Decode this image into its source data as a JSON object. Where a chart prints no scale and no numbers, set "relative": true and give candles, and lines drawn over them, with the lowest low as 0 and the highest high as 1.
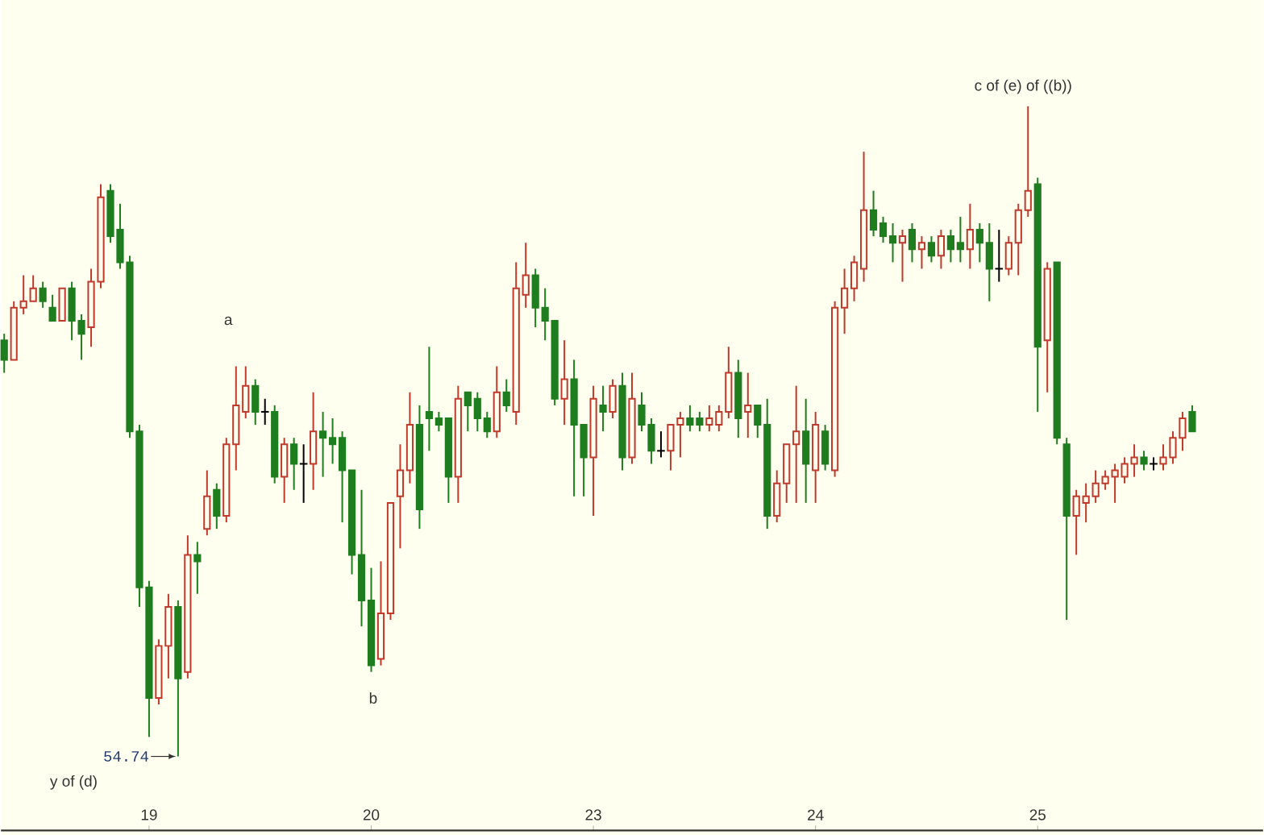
{
  "chart_data": {
    "type": "candlestick",
    "relative": true,
    "categories": [
      null,
      null,
      null,
      null,
      null,
      null,
      null,
      null,
      null,
      null,
      null,
      null,
      null,
      null,
      null,
      "19",
      null,
      null,
      null,
      null,
      null,
      null,
      null,
      null,
      null,
      null,
      null,
      null,
      null,
      null,
      null,
      null,
      null,
      null,
      null,
      null,
      null,
      null,
      "20",
      null,
      null,
      null,
      null,
      null,
      null,
      null,
      null,
      null,
      null,
      null,
      null,
      null,
      null,
      null,
      null,
      null,
      null,
      null,
      null,
      null,
      null,
      "23",
      null,
      null,
      null,
      null,
      null,
      null,
      null,
      null,
      null,
      null,
      null,
      null,
      null,
      null,
      null,
      null,
      null,
      null,
      null,
      null,
      null,
      null,
      "24",
      null,
      null,
      null,
      null,
      null,
      null,
      null,
      null,
      null,
      null,
      null,
      null,
      null,
      null,
      null,
      null,
      null,
      null,
      null,
      null,
      null,
      null,
      "25",
      null,
      null,
      null,
      null,
      null,
      null,
      null,
      null,
      null,
      null,
      null,
      null,
      null,
      null,
      null,
      null
    ],
    "ohlc": [
      [
        0.64,
        0.65,
        0.59,
        0.61
      ],
      [
        0.61,
        0.7,
        0.61,
        0.69
      ],
      [
        0.69,
        0.74,
        0.68,
        0.7
      ],
      [
        0.7,
        0.74,
        0.7,
        0.72
      ],
      [
        0.72,
        0.73,
        0.69,
        0.7
      ],
      [
        0.69,
        0.71,
        0.67,
        0.67
      ],
      [
        0.67,
        0.72,
        0.67,
        0.72
      ],
      [
        0.72,
        0.73,
        0.64,
        0.67
      ],
      [
        0.67,
        0.68,
        0.61,
        0.65
      ],
      [
        0.66,
        0.75,
        0.63,
        0.73
      ],
      [
        0.73,
        0.88,
        0.72,
        0.86
      ],
      [
        0.87,
        0.88,
        0.79,
        0.8
      ],
      [
        0.81,
        0.85,
        0.75,
        0.76
      ],
      [
        0.76,
        0.77,
        0.49,
        0.5
      ],
      [
        0.5,
        0.51,
        0.23,
        0.26
      ],
      [
        0.26,
        0.27,
        0.03,
        0.09
      ],
      [
        0.09,
        0.18,
        0.08,
        0.17
      ],
      [
        0.17,
        0.25,
        0.12,
        0.23
      ],
      [
        0.23,
        0.24,
        0,
        0.12
      ],
      [
        0.13,
        0.34,
        0.12,
        0.31
      ],
      [
        0.31,
        0.33,
        0.25,
        0.3
      ],
      [
        0.35,
        0.44,
        0.34,
        0.4
      ],
      [
        0.41,
        0.42,
        0.35,
        0.37
      ],
      [
        0.37,
        0.49,
        0.36,
        0.48
      ],
      [
        0.48,
        0.6,
        0.44,
        0.54
      ],
      [
        0.53,
        0.6,
        0.52,
        0.57
      ],
      [
        0.57,
        0.58,
        0.51,
        0.53
      ],
      [
        0.53,
        0.55,
        0.51,
        0.53
      ],
      [
        0.53,
        0.54,
        0.42,
        0.43
      ],
      [
        0.43,
        0.49,
        0.39,
        0.48
      ],
      [
        0.48,
        0.49,
        0.41,
        0.45
      ],
      [
        0.45,
        0.48,
        0.39,
        0.45
      ],
      [
        0.45,
        0.56,
        0.41,
        0.5
      ],
      [
        0.5,
        0.53,
        0.43,
        0.49
      ],
      [
        0.49,
        0.52,
        0.45,
        0.48
      ],
      [
        0.49,
        0.5,
        0.36,
        0.44
      ],
      [
        0.44,
        0.44,
        0.28,
        0.31
      ],
      [
        0.31,
        0.41,
        0.2,
        0.24
      ],
      [
        0.24,
        0.29,
        0.13,
        0.14
      ],
      [
        0.15,
        0.3,
        0.14,
        0.22
      ],
      [
        0.22,
        0.39,
        0.21,
        0.39
      ],
      [
        0.4,
        0.48,
        0.32,
        0.44
      ],
      [
        0.44,
        0.56,
        0.42,
        0.51
      ],
      [
        0.51,
        0.54,
        0.35,
        0.38
      ],
      [
        0.53,
        0.63,
        0.47,
        0.52
      ],
      [
        0.52,
        0.53,
        0.5,
        0.51
      ],
      [
        0.52,
        0.52,
        0.39,
        0.43
      ],
      [
        0.43,
        0.57,
        0.39,
        0.55
      ],
      [
        0.56,
        0.56,
        0.5,
        0.54
      ],
      [
        0.55,
        0.56,
        0.5,
        0.52
      ],
      [
        0.52,
        0.53,
        0.49,
        0.5
      ],
      [
        0.5,
        0.6,
        0.49,
        0.56
      ],
      [
        0.56,
        0.58,
        0.53,
        0.54
      ],
      [
        0.53,
        0.76,
        0.51,
        0.72
      ],
      [
        0.71,
        0.79,
        0.69,
        0.74
      ],
      [
        0.74,
        0.75,
        0.66,
        0.69
      ],
      [
        0.69,
        0.72,
        0.64,
        0.67
      ],
      [
        0.67,
        0.67,
        0.54,
        0.55
      ],
      [
        0.55,
        0.64,
        0.51,
        0.58
      ],
      [
        0.58,
        0.61,
        0.4,
        0.51
      ],
      [
        0.51,
        0.51,
        0.4,
        0.46
      ],
      [
        0.46,
        0.57,
        0.37,
        0.55
      ],
      [
        0.54,
        0.57,
        0.5,
        0.53
      ],
      [
        0.53,
        0.58,
        0.52,
        0.57
      ],
      [
        0.57,
        0.59,
        0.44,
        0.46
      ],
      [
        0.46,
        0.59,
        0.45,
        0.55
      ],
      [
        0.54,
        0.56,
        0.5,
        0.51
      ],
      [
        0.51,
        0.52,
        0.45,
        0.47
      ],
      [
        0.47,
        0.5,
        0.46,
        0.47
      ],
      [
        0.47,
        0.51,
        0.44,
        0.51
      ],
      [
        0.51,
        0.53,
        0.46,
        0.52
      ],
      [
        0.52,
        0.54,
        0.5,
        0.51
      ],
      [
        0.52,
        0.53,
        0.5,
        0.51
      ],
      [
        0.51,
        0.54,
        0.5,
        0.52
      ],
      [
        0.51,
        0.54,
        0.5,
        0.53
      ],
      [
        0.53,
        0.63,
        0.52,
        0.59
      ],
      [
        0.59,
        0.61,
        0.49,
        0.52
      ],
      [
        0.53,
        0.59,
        0.49,
        0.54
      ],
      [
        0.54,
        0.54,
        0.49,
        0.51
      ],
      [
        0.51,
        0.55,
        0.35,
        0.37
      ],
      [
        0.37,
        0.44,
        0.36,
        0.42
      ],
      [
        0.42,
        0.48,
        0.39,
        0.48
      ],
      [
        0.48,
        0.57,
        0.39,
        0.5
      ],
      [
        0.5,
        0.55,
        0.39,
        0.45
      ],
      [
        0.44,
        0.53,
        0.39,
        0.51
      ],
      [
        0.5,
        0.51,
        0.44,
        0.45
      ],
      [
        0.44,
        0.7,
        0.43,
        0.69
      ],
      [
        0.69,
        0.75,
        0.65,
        0.72
      ],
      [
        0.72,
        0.77,
        0.7,
        0.76
      ],
      [
        0.75,
        0.93,
        0.73,
        0.84
      ],
      [
        0.84,
        0.87,
        0.8,
        0.81
      ],
      [
        0.82,
        0.83,
        0.79,
        0.8
      ],
      [
        0.8,
        0.82,
        0.76,
        0.79
      ],
      [
        0.79,
        0.81,
        0.73,
        0.8
      ],
      [
        0.81,
        0.82,
        0.76,
        0.78
      ],
      [
        0.78,
        0.8,
        0.75,
        0.79
      ],
      [
        0.79,
        0.8,
        0.76,
        0.77
      ],
      [
        0.77,
        0.81,
        0.75,
        0.8
      ],
      [
        0.8,
        0.81,
        0.76,
        0.78
      ],
      [
        0.79,
        0.83,
        0.76,
        0.78
      ],
      [
        0.78,
        0.85,
        0.75,
        0.81
      ],
      [
        0.81,
        0.82,
        0.76,
        0.79
      ],
      [
        0.79,
        0.82,
        0.7,
        0.75
      ],
      [
        0.75,
        0.81,
        0.73,
        0.75
      ],
      [
        0.75,
        0.8,
        0.74,
        0.79
      ],
      [
        0.79,
        0.85,
        0.74,
        0.84
      ],
      [
        0.84,
        1,
        0.83,
        0.87
      ],
      [
        0.88,
        0.89,
        0.53,
        0.63
      ],
      [
        0.64,
        0.76,
        0.56,
        0.75
      ],
      [
        0.76,
        0.76,
        0.48,
        0.49
      ],
      [
        0.48,
        0.49,
        0.21,
        0.37
      ],
      [
        0.37,
        0.41,
        0.31,
        0.4
      ],
      [
        0.39,
        0.42,
        0.36,
        0.4
      ],
      [
        0.4,
        0.44,
        0.39,
        0.42
      ],
      [
        0.42,
        0.44,
        0.41,
        0.43
      ],
      [
        0.43,
        0.45,
        0.39,
        0.44
      ],
      [
        0.43,
        0.46,
        0.42,
        0.45
      ],
      [
        0.45,
        0.48,
        0.43,
        0.46
      ],
      [
        0.46,
        0.47,
        0.44,
        0.45
      ],
      [
        0.45,
        0.46,
        0.44,
        0.45
      ],
      [
        0.45,
        0.48,
        0.44,
        0.46
      ],
      [
        0.46,
        0.5,
        0.45,
        0.49
      ],
      [
        0.49,
        0.53,
        0.47,
        0.52
      ],
      [
        0.53,
        0.54,
        0.5,
        0.5
      ]
    ],
    "annotations": [
      "c of (e) of ((b))",
      "a",
      "b",
      "y of (d)",
      "54.74"
    ]
  }
}
